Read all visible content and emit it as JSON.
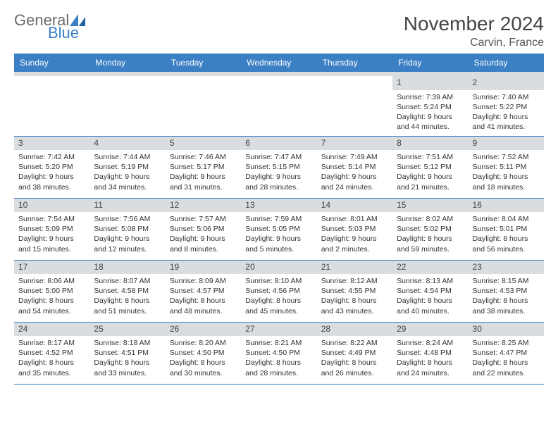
{
  "logo": {
    "word1": "General",
    "word2": "Blue"
  },
  "title": "November 2024",
  "location": "Carvin, France",
  "colors": {
    "header_bg": "#3b7fc4",
    "header_text": "#ffffff",
    "daynum_bg": "#d9dde0",
    "border": "#3b7fc4",
    "text": "#333333",
    "logo_gray": "#6b6b6b",
    "logo_blue": "#3b7fc4"
  },
  "columns": [
    "Sunday",
    "Monday",
    "Tuesday",
    "Wednesday",
    "Thursday",
    "Friday",
    "Saturday"
  ],
  "weeks": [
    [
      {
        "n": "",
        "lines": []
      },
      {
        "n": "",
        "lines": []
      },
      {
        "n": "",
        "lines": []
      },
      {
        "n": "",
        "lines": []
      },
      {
        "n": "",
        "lines": []
      },
      {
        "n": "1",
        "lines": [
          "Sunrise: 7:39 AM",
          "Sunset: 5:24 PM",
          "Daylight: 9 hours and 44 minutes."
        ]
      },
      {
        "n": "2",
        "lines": [
          "Sunrise: 7:40 AM",
          "Sunset: 5:22 PM",
          "Daylight: 9 hours and 41 minutes."
        ]
      }
    ],
    [
      {
        "n": "3",
        "lines": [
          "Sunrise: 7:42 AM",
          "Sunset: 5:20 PM",
          "Daylight: 9 hours and 38 minutes."
        ]
      },
      {
        "n": "4",
        "lines": [
          "Sunrise: 7:44 AM",
          "Sunset: 5:19 PM",
          "Daylight: 9 hours and 34 minutes."
        ]
      },
      {
        "n": "5",
        "lines": [
          "Sunrise: 7:46 AM",
          "Sunset: 5:17 PM",
          "Daylight: 9 hours and 31 minutes."
        ]
      },
      {
        "n": "6",
        "lines": [
          "Sunrise: 7:47 AM",
          "Sunset: 5:15 PM",
          "Daylight: 9 hours and 28 minutes."
        ]
      },
      {
        "n": "7",
        "lines": [
          "Sunrise: 7:49 AM",
          "Sunset: 5:14 PM",
          "Daylight: 9 hours and 24 minutes."
        ]
      },
      {
        "n": "8",
        "lines": [
          "Sunrise: 7:51 AM",
          "Sunset: 5:12 PM",
          "Daylight: 9 hours and 21 minutes."
        ]
      },
      {
        "n": "9",
        "lines": [
          "Sunrise: 7:52 AM",
          "Sunset: 5:11 PM",
          "Daylight: 9 hours and 18 minutes."
        ]
      }
    ],
    [
      {
        "n": "10",
        "lines": [
          "Sunrise: 7:54 AM",
          "Sunset: 5:09 PM",
          "Daylight: 9 hours and 15 minutes."
        ]
      },
      {
        "n": "11",
        "lines": [
          "Sunrise: 7:56 AM",
          "Sunset: 5:08 PM",
          "Daylight: 9 hours and 12 minutes."
        ]
      },
      {
        "n": "12",
        "lines": [
          "Sunrise: 7:57 AM",
          "Sunset: 5:06 PM",
          "Daylight: 9 hours and 8 minutes."
        ]
      },
      {
        "n": "13",
        "lines": [
          "Sunrise: 7:59 AM",
          "Sunset: 5:05 PM",
          "Daylight: 9 hours and 5 minutes."
        ]
      },
      {
        "n": "14",
        "lines": [
          "Sunrise: 8:01 AM",
          "Sunset: 5:03 PM",
          "Daylight: 9 hours and 2 minutes."
        ]
      },
      {
        "n": "15",
        "lines": [
          "Sunrise: 8:02 AM",
          "Sunset: 5:02 PM",
          "Daylight: 8 hours and 59 minutes."
        ]
      },
      {
        "n": "16",
        "lines": [
          "Sunrise: 8:04 AM",
          "Sunset: 5:01 PM",
          "Daylight: 8 hours and 56 minutes."
        ]
      }
    ],
    [
      {
        "n": "17",
        "lines": [
          "Sunrise: 8:06 AM",
          "Sunset: 5:00 PM",
          "Daylight: 8 hours and 54 minutes."
        ]
      },
      {
        "n": "18",
        "lines": [
          "Sunrise: 8:07 AM",
          "Sunset: 4:58 PM",
          "Daylight: 8 hours and 51 minutes."
        ]
      },
      {
        "n": "19",
        "lines": [
          "Sunrise: 8:09 AM",
          "Sunset: 4:57 PM",
          "Daylight: 8 hours and 48 minutes."
        ]
      },
      {
        "n": "20",
        "lines": [
          "Sunrise: 8:10 AM",
          "Sunset: 4:56 PM",
          "Daylight: 8 hours and 45 minutes."
        ]
      },
      {
        "n": "21",
        "lines": [
          "Sunrise: 8:12 AM",
          "Sunset: 4:55 PM",
          "Daylight: 8 hours and 43 minutes."
        ]
      },
      {
        "n": "22",
        "lines": [
          "Sunrise: 8:13 AM",
          "Sunset: 4:54 PM",
          "Daylight: 8 hours and 40 minutes."
        ]
      },
      {
        "n": "23",
        "lines": [
          "Sunrise: 8:15 AM",
          "Sunset: 4:53 PM",
          "Daylight: 8 hours and 38 minutes."
        ]
      }
    ],
    [
      {
        "n": "24",
        "lines": [
          "Sunrise: 8:17 AM",
          "Sunset: 4:52 PM",
          "Daylight: 8 hours and 35 minutes."
        ]
      },
      {
        "n": "25",
        "lines": [
          "Sunrise: 8:18 AM",
          "Sunset: 4:51 PM",
          "Daylight: 8 hours and 33 minutes."
        ]
      },
      {
        "n": "26",
        "lines": [
          "Sunrise: 8:20 AM",
          "Sunset: 4:50 PM",
          "Daylight: 8 hours and 30 minutes."
        ]
      },
      {
        "n": "27",
        "lines": [
          "Sunrise: 8:21 AM",
          "Sunset: 4:50 PM",
          "Daylight: 8 hours and 28 minutes."
        ]
      },
      {
        "n": "28",
        "lines": [
          "Sunrise: 8:22 AM",
          "Sunset: 4:49 PM",
          "Daylight: 8 hours and 26 minutes."
        ]
      },
      {
        "n": "29",
        "lines": [
          "Sunrise: 8:24 AM",
          "Sunset: 4:48 PM",
          "Daylight: 8 hours and 24 minutes."
        ]
      },
      {
        "n": "30",
        "lines": [
          "Sunrise: 8:25 AM",
          "Sunset: 4:47 PM",
          "Daylight: 8 hours and 22 minutes."
        ]
      }
    ]
  ]
}
